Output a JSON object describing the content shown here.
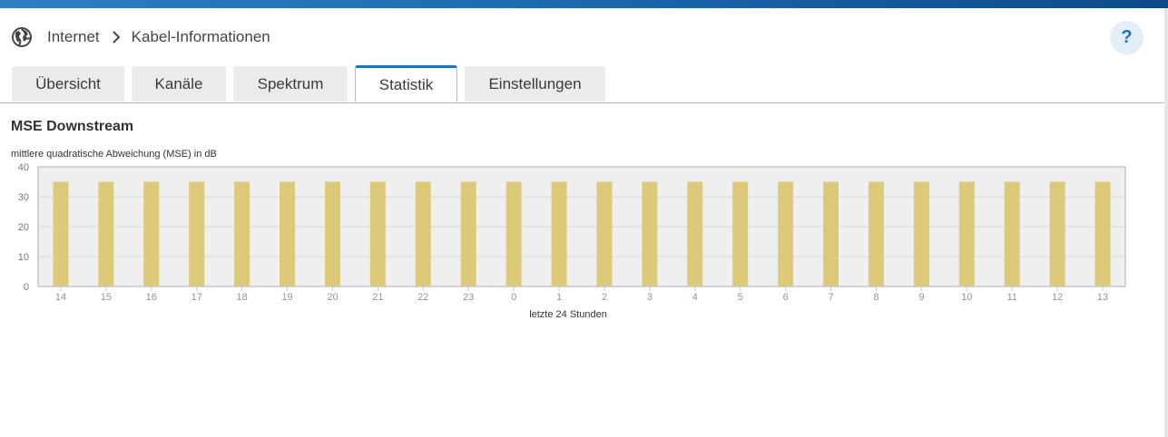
{
  "breadcrumb": {
    "items": [
      "Internet",
      "Kabel-Informationen"
    ],
    "icon": "globe-icon"
  },
  "help": {
    "label": "?"
  },
  "tabs": [
    {
      "label": "Übersicht",
      "active": false
    },
    {
      "label": "Kanäle",
      "active": false
    },
    {
      "label": "Spektrum",
      "active": false
    },
    {
      "label": "Statistik",
      "active": true
    },
    {
      "label": "Einstellungen",
      "active": false
    }
  ],
  "section": {
    "title": "MSE Downstream"
  },
  "colors": {
    "bar": "#dcc97a",
    "accent": "#1f73be",
    "plot_bg": "#efefef"
  },
  "chart_data": {
    "type": "bar",
    "title": "",
    "ylabel": "mittlere quadratische Abweichung (MSE) in dB",
    "xlabel": "letzte 24 Stunden",
    "ylim": [
      0,
      40
    ],
    "yticks": [
      0,
      10,
      20,
      30,
      40
    ],
    "grid": true,
    "categories": [
      "14",
      "15",
      "16",
      "17",
      "18",
      "19",
      "20",
      "21",
      "22",
      "23",
      "0",
      "1",
      "2",
      "3",
      "4",
      "5",
      "6",
      "7",
      "8",
      "9",
      "10",
      "11",
      "12",
      "13"
    ],
    "values": [
      35,
      35,
      35,
      35,
      35,
      35,
      35,
      35,
      35,
      35,
      35,
      35,
      35,
      35,
      35,
      35,
      35,
      35,
      35,
      35,
      35,
      35,
      35,
      35
    ]
  }
}
